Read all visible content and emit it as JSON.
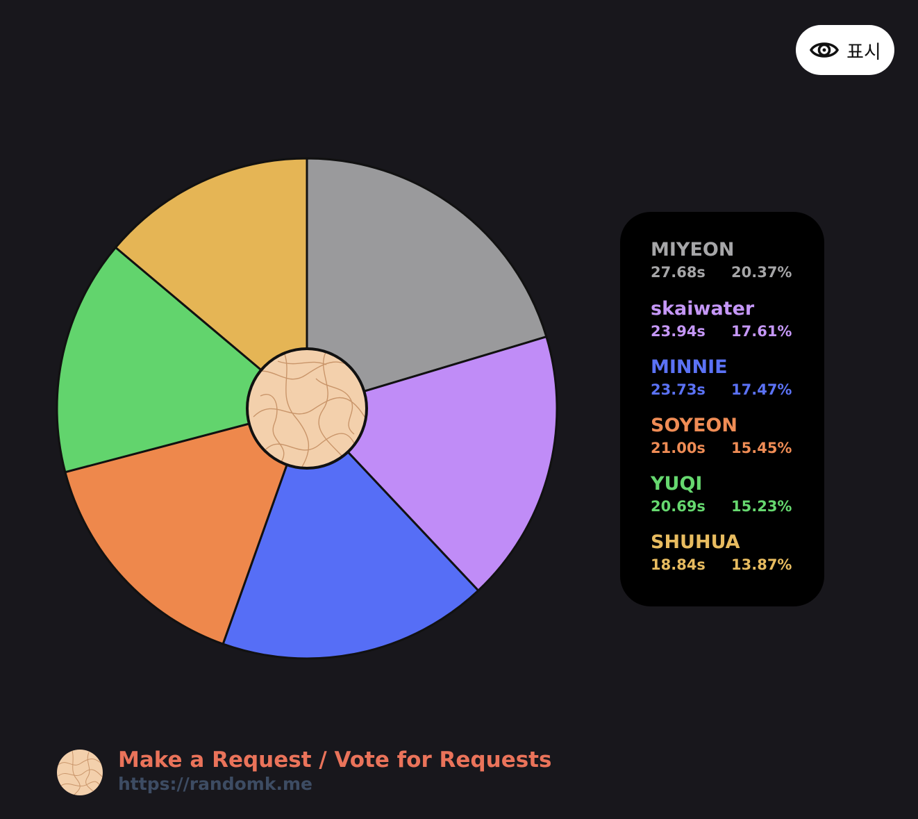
{
  "show_button": {
    "label": "표시",
    "icon": "eye-icon"
  },
  "chart_data": {
    "type": "pie",
    "start_angle_deg": 0,
    "direction": "clockwise",
    "center_image": "topographic-pattern-badge",
    "slices": [
      {
        "name": "MIYEON",
        "time": "27.68s",
        "percent_label": "20.37%",
        "value": 20.37,
        "color": "#9a9a9c",
        "legend_color": "#a6a6a8"
      },
      {
        "name": "skaiwater",
        "time": "23.94s",
        "percent_label": "17.61%",
        "value": 17.61,
        "color": "#c08cf7",
        "legend_color": "#c597f7"
      },
      {
        "name": "MINNIE",
        "time": "23.73s",
        "percent_label": "17.47%",
        "value": 17.47,
        "color": "#566ef6",
        "legend_color": "#5b72f5"
      },
      {
        "name": "SOYEON",
        "time": "21.00s",
        "percent_label": "15.45%",
        "value": 15.45,
        "color": "#ee884c",
        "legend_color": "#ef8c55"
      },
      {
        "name": "YUQI",
        "time": "20.69s",
        "percent_label": "15.23%",
        "value": 15.23,
        "color": "#62d46d",
        "legend_color": "#66d86f"
      },
      {
        "name": "SHUHUA",
        "time": "18.84s",
        "percent_label": "13.87%",
        "value": 13.87,
        "color": "#e5b555",
        "legend_color": "#e8bc60"
      }
    ]
  },
  "footer": {
    "title": "Make a Request / Vote for Requests",
    "url": "https://randomk.me"
  },
  "colors": {
    "background": "#18171c",
    "legend_background": "#000000",
    "badge_fill": "#f3d0ac",
    "badge_lines": "#c9956a",
    "footer_title": "#ea735a",
    "footer_url": "#3d4c63"
  }
}
